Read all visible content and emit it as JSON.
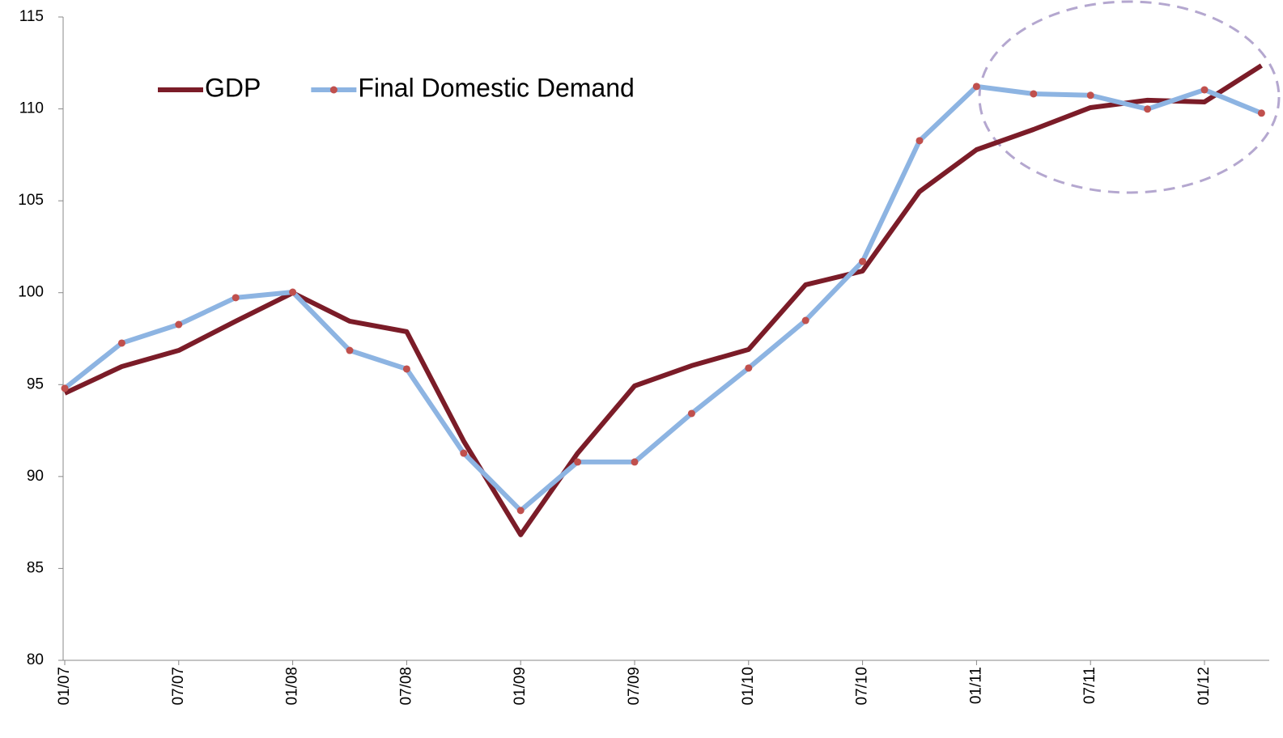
{
  "chart_data": {
    "type": "line",
    "categories": [
      "01/07",
      null,
      "07/07",
      null,
      "01/08",
      null,
      "07/08",
      null,
      "01/09",
      null,
      "07/09",
      null,
      "01/10",
      null,
      "07/10",
      null,
      "01/11",
      null,
      "07/11",
      null,
      "01/12",
      null
    ],
    "series": [
      {
        "name": "GDP",
        "color": "#7b1c28",
        "values": [
          94.53,
          95.98,
          96.86,
          98.45,
          99.99,
          98.45,
          97.88,
          91.93,
          86.83,
          91.27,
          94.93,
          96.03,
          96.91,
          100.43,
          101.18,
          105.5,
          107.78,
          108.88,
          110.07,
          110.47,
          110.38,
          112.36
        ]
      },
      {
        "name": "Final Domestic Demand",
        "color": "#8db4e2",
        "marker_color": "#c0504d",
        "values": [
          94.8,
          97.26,
          98.27,
          99.73,
          100.03,
          96.86,
          95.85,
          91.27,
          88.15,
          90.79,
          90.79,
          93.43,
          95.9,
          98.49,
          101.7,
          108.27,
          111.22,
          110.82,
          110.74,
          109.99,
          111.04,
          109.77
        ]
      }
    ],
    "ylim": [
      80,
      115
    ],
    "yticks": [
      80,
      85,
      90,
      95,
      100,
      105,
      110,
      115
    ],
    "grid": false,
    "legend": "top-left"
  }
}
